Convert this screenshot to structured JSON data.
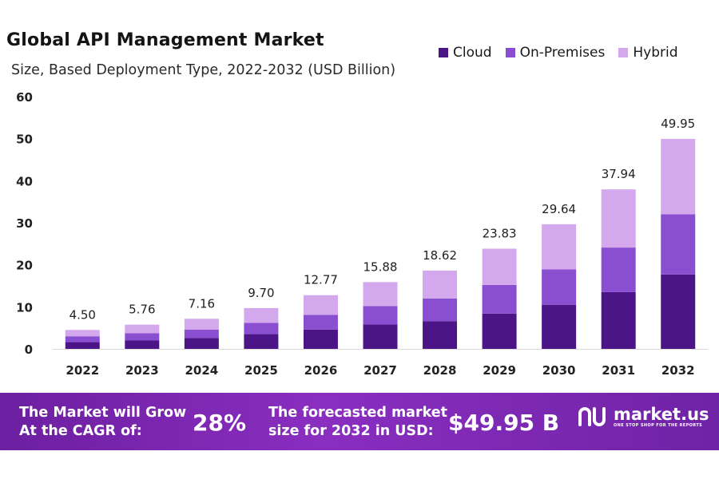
{
  "chart_data": {
    "type": "bar",
    "stacked": true,
    "title": "Global API Management Market",
    "subtitle": "Size, Based Deployment Type, 2022-2032 (USD Billion)",
    "categories": [
      "2022",
      "2023",
      "2024",
      "2025",
      "2026",
      "2027",
      "2028",
      "2029",
      "2030",
      "2031",
      "2032"
    ],
    "series": [
      {
        "name": "Cloud",
        "color": "#4b1487",
        "values": [
          1.6,
          2.0,
          2.6,
          3.5,
          4.6,
          5.8,
          6.6,
          8.4,
          10.5,
          13.5,
          17.7
        ]
      },
      {
        "name": "On-Premises",
        "color": "#8a4fd0",
        "values": [
          1.4,
          1.7,
          2.0,
          2.7,
          3.5,
          4.4,
          5.4,
          6.8,
          8.4,
          10.6,
          14.3
        ]
      },
      {
        "name": "Hybrid",
        "color": "#d3a8ec",
        "values": [
          1.5,
          2.06,
          2.56,
          3.5,
          4.67,
          5.68,
          6.62,
          8.63,
          10.74,
          13.84,
          17.95
        ]
      }
    ],
    "totals": [
      "4.50",
      "5.76",
      "7.16",
      "9.70",
      "12.77",
      "15.88",
      "18.62",
      "23.83",
      "29.64",
      "37.94",
      "49.95"
    ],
    "yticks": [
      "0",
      "10",
      "20",
      "30",
      "40",
      "50",
      "60"
    ],
    "ylim": [
      0,
      60
    ],
    "legend_position": "top-right",
    "grid": false
  },
  "footer": {
    "cagr_text_line1": "The Market will Grow",
    "cagr_text_line2": "At the CAGR of:",
    "cagr_value": "28%",
    "forecast_text_line1": "The forecasted market",
    "forecast_text_line2": "size for 2032 in USD:",
    "forecast_value": "$49.95 B",
    "logo_name": "market.us",
    "logo_tagline": "ONE STOP SHOP FOR THE REPORTS"
  }
}
